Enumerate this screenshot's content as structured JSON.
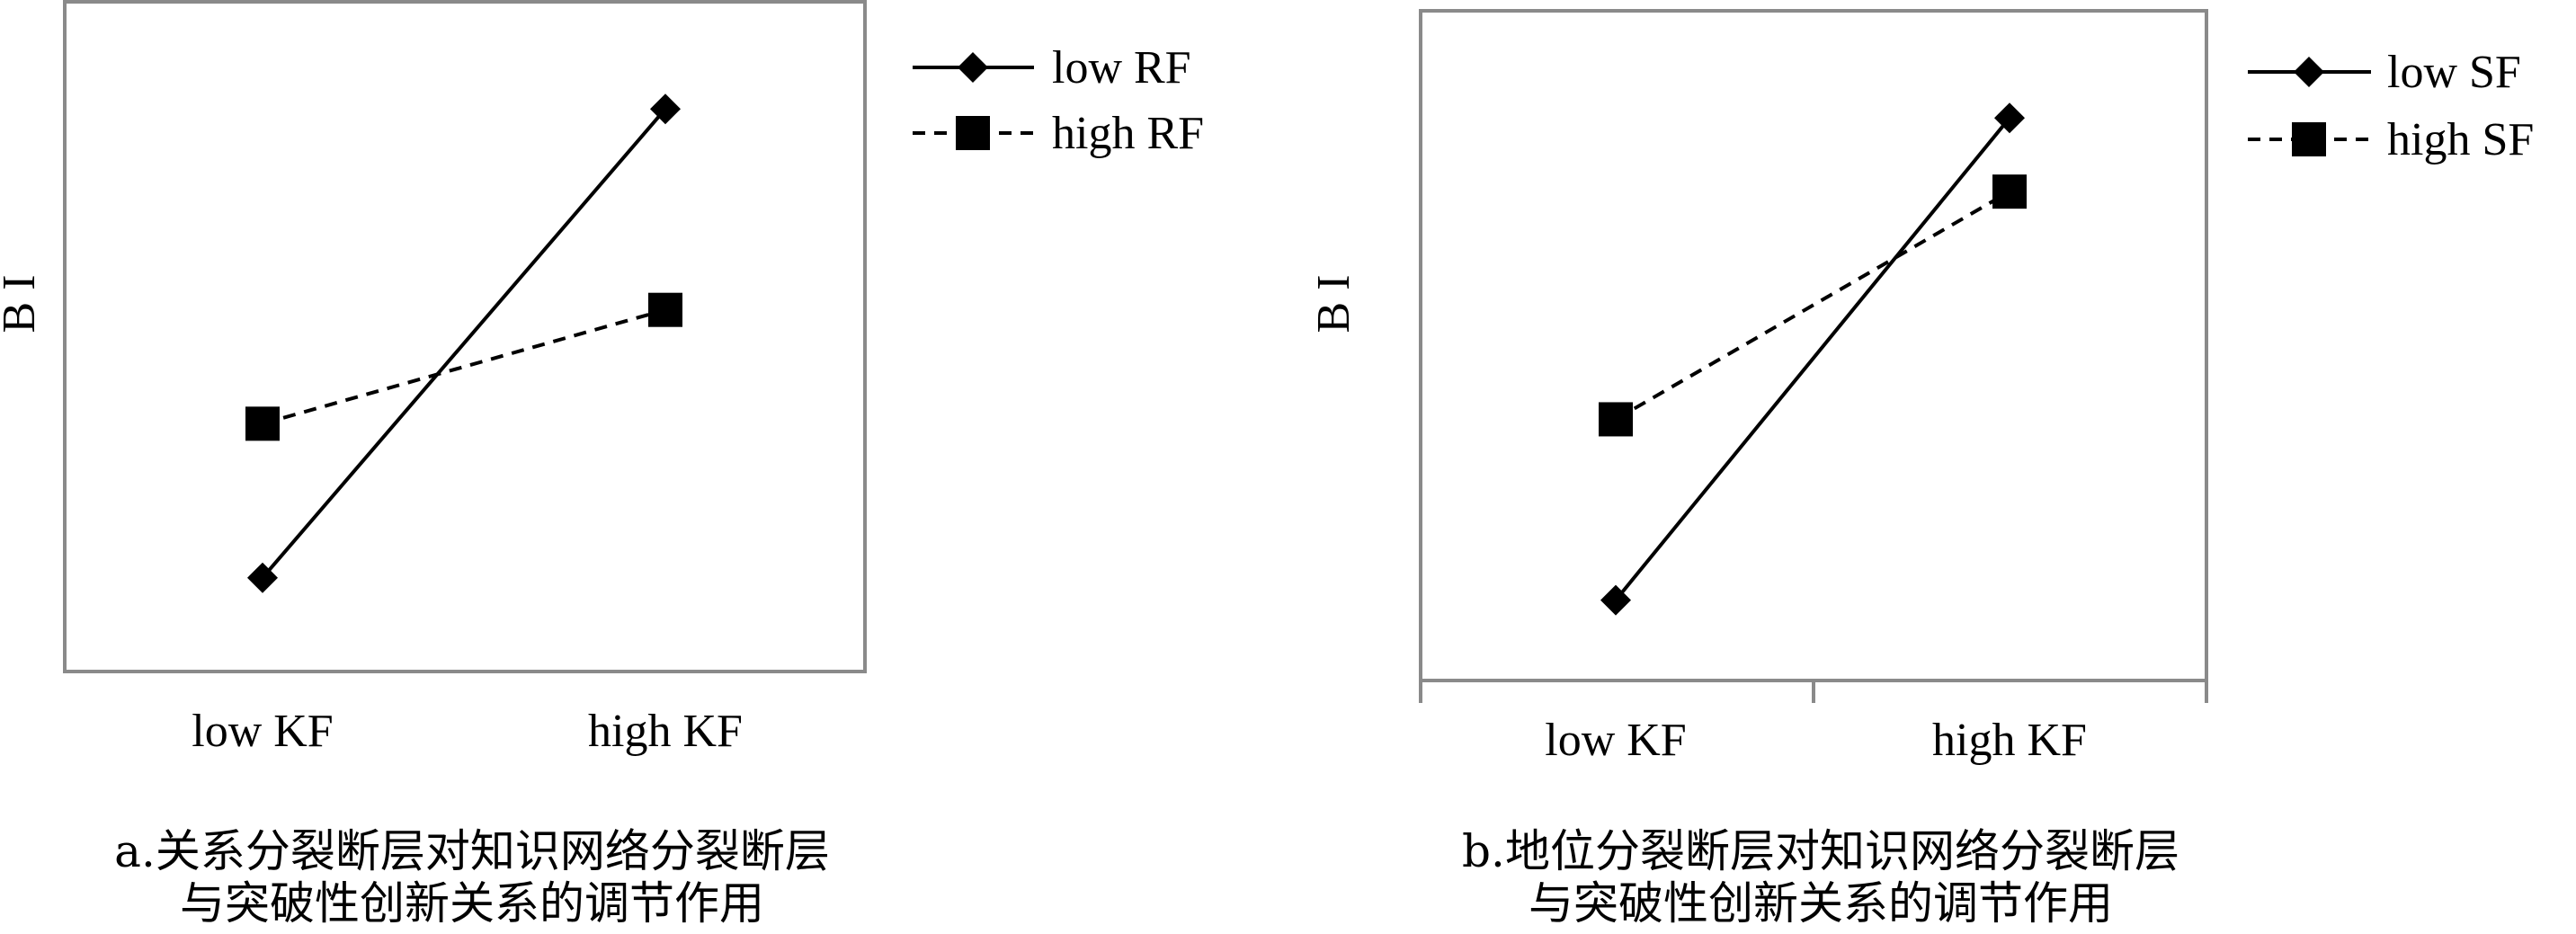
{
  "chart_data": [
    {
      "type": "line",
      "title": "",
      "xlabel": "",
      "ylabel": "B I",
      "categories": [
        "low  KF",
        "high KF"
      ],
      "ylim": [
        0,
        10
      ],
      "grid": false,
      "legend": "top-right",
      "series": [
        {
          "name": "low  RF",
          "values": [
            1.4,
            8.4
          ],
          "marker": "diamond",
          "dash": "solid"
        },
        {
          "name": "high RF",
          "values": [
            3.7,
            5.4
          ],
          "marker": "square",
          "dash": "dashed"
        }
      ],
      "caption": [
        "a.关系分裂断层对知识网络分裂断层",
        "与突破性创新关系的调节作用"
      ]
    },
    {
      "type": "line",
      "title": "",
      "xlabel": "",
      "ylabel": "B I",
      "categories": [
        "low  KF",
        "high KF"
      ],
      "ylim": [
        0,
        10
      ],
      "grid": false,
      "legend": "top-right",
      "series": [
        {
          "name": "low  SF",
          "values": [
            1.2,
            8.4
          ],
          "marker": "diamond",
          "dash": "solid"
        },
        {
          "name": "high SF",
          "values": [
            3.9,
            7.3
          ],
          "marker": "square",
          "dash": "dashed"
        }
      ],
      "caption": [
        "b.地位分裂断层对知识网络分裂断层",
        "与突破性创新关系的调节作用"
      ]
    }
  ],
  "colors": {
    "frame": "#8a8a8a",
    "ink": "#000000"
  }
}
